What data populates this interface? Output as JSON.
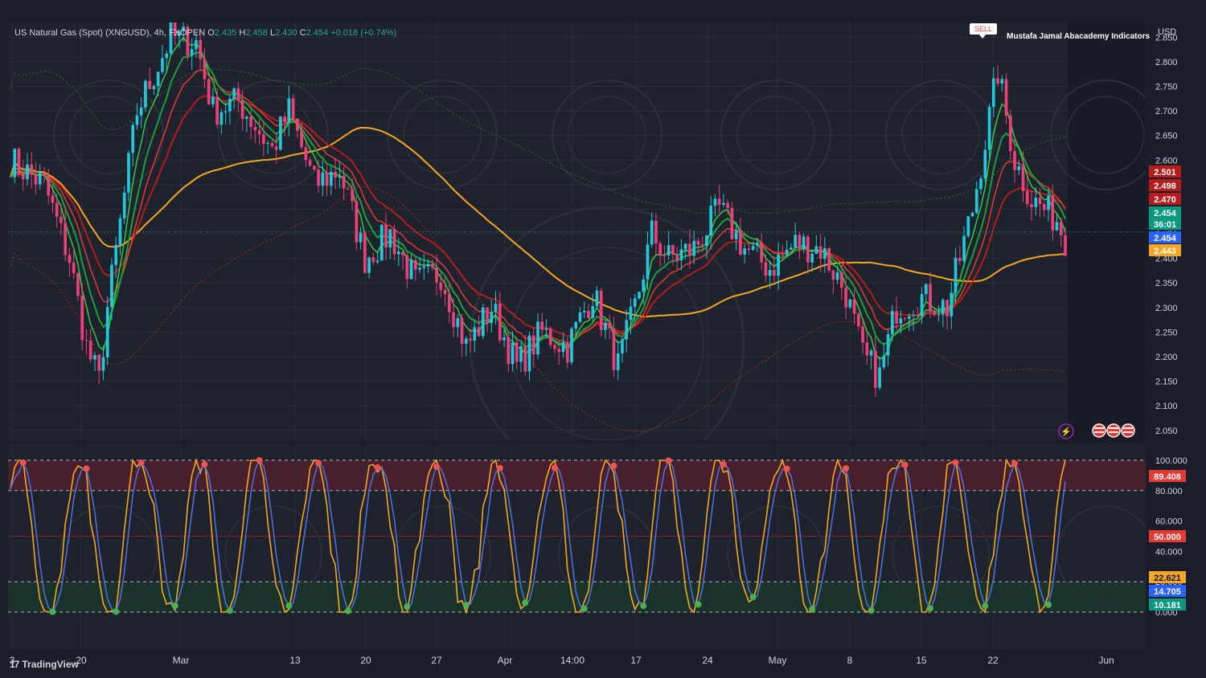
{
  "header": {
    "symbol": "US Natural Gas (Spot) (XNGUSD), 4h, FXOPEN",
    "o_label": "O",
    "o_value": "2.435",
    "h_label": "H",
    "h_value": "2.458",
    "l_label": "L",
    "l_value": "2.430",
    "c_label": "C",
    "c_value": "2.454",
    "change": "+0.018 (+0.74%)"
  },
  "signal": {
    "label": "SELL",
    "indicator_name": "Mustafa Jamal Abacademy Indicators"
  },
  "currency": "USD",
  "brand": "TradingView",
  "colors": {
    "up": "#26a69a",
    "down": "#ef5350",
    "orange_ma": "#f5a623",
    "green_ma": "#2ecc40",
    "red_ma": "#e53935",
    "stoch_k": "#4a6fd8",
    "stoch_d": "#f5a623",
    "overbought_zone": "#5a1f2e",
    "oversold_zone": "#173a2b"
  },
  "price_badges": [
    {
      "value": "2.501",
      "color": "#b71c1c"
    },
    {
      "value": "2.498",
      "color": "#b71c1c"
    },
    {
      "value": "2.470",
      "color": "#b71c1c"
    },
    {
      "value": "2.454",
      "color": "#089981"
    },
    {
      "value": "36:01",
      "color": "#089981"
    },
    {
      "value": "2.454",
      "color": "#2962ff"
    },
    {
      "value": "2.443",
      "color": "#f5a623"
    }
  ],
  "osc_badges": [
    {
      "value": "89.408",
      "color": "#e53935"
    },
    {
      "value": "50.000",
      "color": "#e53935"
    },
    {
      "value": "22.621",
      "color": "#f5a623"
    },
    {
      "value": "14.705",
      "color": "#2962ff"
    },
    {
      "value": "10.181",
      "color": "#089981"
    }
  ],
  "chart_data": [
    {
      "type": "candlestick",
      "title": "US Natural Gas (Spot) (XNGUSD), 4h, FXOPEN",
      "ylim": [
        2.03,
        2.88
      ],
      "y_ticks": [
        "2.850",
        "2.800",
        "2.750",
        "2.700",
        "2.650",
        "2.600",
        "2.550",
        "2.500",
        "2.450",
        "2.400",
        "2.350",
        "2.300",
        "2.250",
        "2.200",
        "2.150",
        "2.100",
        "2.050"
      ],
      "x_ticks": [
        "3",
        "20",
        "Mar",
        "13",
        "20",
        "27",
        "Apr",
        "14:00",
        "17",
        "24",
        "May",
        "8",
        "15",
        "22",
        "Jun"
      ],
      "close_path": [
        [
          0,
          2.6
        ],
        [
          8,
          2.55
        ],
        [
          14,
          2.4
        ],
        [
          18,
          2.22
        ],
        [
          21,
          2.15
        ],
        [
          23,
          2.3
        ],
        [
          30,
          2.7
        ],
        [
          38,
          2.85
        ],
        [
          44,
          2.84
        ],
        [
          48,
          2.7
        ],
        [
          54,
          2.72
        ],
        [
          62,
          2.62
        ],
        [
          66,
          2.7
        ],
        [
          72,
          2.55
        ],
        [
          78,
          2.58
        ],
        [
          84,
          2.4
        ],
        [
          90,
          2.45
        ],
        [
          96,
          2.35
        ],
        [
          102,
          2.37
        ],
        [
          108,
          2.22
        ],
        [
          114,
          2.3
        ],
        [
          120,
          2.18
        ],
        [
          126,
          2.25
        ],
        [
          132,
          2.22
        ],
        [
          138,
          2.33
        ],
        [
          144,
          2.18
        ],
        [
          148,
          2.3
        ],
        [
          152,
          2.45
        ],
        [
          156,
          2.4
        ],
        [
          162,
          2.42
        ],
        [
          168,
          2.5
        ],
        [
          174,
          2.42
        ],
        [
          180,
          2.38
        ],
        [
          186,
          2.43
        ],
        [
          192,
          2.42
        ],
        [
          198,
          2.33
        ],
        [
          202,
          2.2
        ],
        [
          206,
          2.16
        ],
        [
          210,
          2.3
        ],
        [
          216,
          2.32
        ],
        [
          222,
          2.3
        ],
        [
          228,
          2.5
        ],
        [
          234,
          2.78
        ],
        [
          238,
          2.6
        ],
        [
          242,
          2.52
        ],
        [
          248,
          2.48
        ],
        [
          250,
          2.44
        ]
      ],
      "moving_averages": [
        {
          "name": "",
          "color": "orange",
          "last": 2.443
        },
        {
          "name": "",
          "color": "red",
          "last": 2.47
        },
        {
          "name": "",
          "color": "green",
          "last": 2.454
        }
      ],
      "last_price": 2.454
    },
    {
      "type": "line",
      "title": "",
      "ylim": [
        0,
        100
      ],
      "y_ticks": [
        "100.000",
        "80.000",
        "60.000",
        "40.000",
        "20.000",
        "0.000"
      ],
      "levels": [
        100,
        80,
        50,
        20,
        0
      ],
      "series": [
        {
          "name": "",
          "color": "blue",
          "last": 14.705
        },
        {
          "name": "",
          "color": "orange",
          "last": 22.621
        }
      ],
      "turning_points": {
        "overbought_count": 25,
        "oversold_count": 27
      }
    }
  ]
}
